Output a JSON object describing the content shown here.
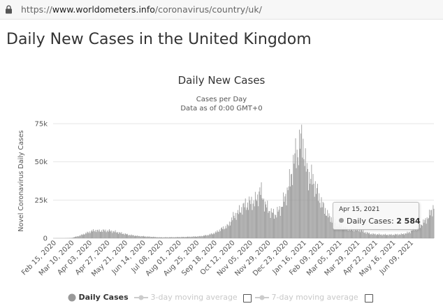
{
  "browser": {
    "url_scheme": "https://",
    "url_host": "www.worldometers.info",
    "url_path": "/coronavirus/country/uk/"
  },
  "page": {
    "title": "Daily New Cases in the United Kingdom"
  },
  "chart_data": {
    "type": "bar",
    "title": "Daily New Cases",
    "subtitle": "Cases per Day",
    "subtitle2": "Data as of 0:00 GMT+0",
    "ylabel": "Novel Coronavirus Daily Cases",
    "ylim": [
      0,
      75000
    ],
    "yticks": [
      0,
      25000,
      50000,
      75000
    ],
    "ytick_labels": [
      "0",
      "25k",
      "50k",
      "75k"
    ],
    "xticks": [
      "Feb 15, 2020",
      "Mar 10, 2020",
      "Apr 03, 2020",
      "Apr 27, 2020",
      "May 21, 2020",
      "Jun 14, 2020",
      "Jul 08, 2020",
      "Aug 01, 2020",
      "Aug 25, 2020",
      "Sep 18, 2020",
      "Oct 12, 2020",
      "Nov 05, 2020",
      "Nov 29, 2020",
      "Dec 23, 2020",
      "Jan 16, 2021",
      "Feb 09, 2021",
      "Mar 05, 2021",
      "Mar 29, 2021",
      "Apr 22, 2021",
      "May 16, 2021",
      "Jun 09, 2021"
    ],
    "x_start": "2020-02-15",
    "x_end": "2021-06-30",
    "series": [
      {
        "name": "Daily Cases",
        "color": "#999999",
        "points": [
          [
            "2020-02-15",
            0
          ],
          [
            "2020-03-01",
            30
          ],
          [
            "2020-03-10",
            200
          ],
          [
            "2020-03-20",
            1500
          ],
          [
            "2020-03-28",
            3000
          ],
          [
            "2020-04-05",
            4500
          ],
          [
            "2020-04-10",
            5200
          ],
          [
            "2020-04-15",
            4800
          ],
          [
            "2020-04-22",
            5000
          ],
          [
            "2020-04-30",
            4800
          ],
          [
            "2020-05-07",
            4200
          ],
          [
            "2020-05-15",
            3300
          ],
          [
            "2020-05-25",
            2200
          ],
          [
            "2020-06-05",
            1500
          ],
          [
            "2020-06-20",
            1000
          ],
          [
            "2020-07-05",
            600
          ],
          [
            "2020-07-25",
            700
          ],
          [
            "2020-08-10",
            900
          ],
          [
            "2020-08-25",
            1200
          ],
          [
            "2020-09-05",
            2000
          ],
          [
            "2020-09-15",
            3500
          ],
          [
            "2020-09-25",
            6500
          ],
          [
            "2020-10-02",
            8000
          ],
          [
            "2020-10-09",
            14000
          ],
          [
            "2020-10-16",
            17000
          ],
          [
            "2020-10-23",
            21000
          ],
          [
            "2020-10-30",
            23000
          ],
          [
            "2020-11-06",
            24000
          ],
          [
            "2020-11-10",
            26000
          ],
          [
            "2020-11-13",
            32000
          ],
          [
            "2020-11-20",
            22000
          ],
          [
            "2020-11-27",
            17000
          ],
          [
            "2020-12-04",
            15500
          ],
          [
            "2020-12-11",
            20000
          ],
          [
            "2020-12-18",
            29000
          ],
          [
            "2020-12-23",
            38000
          ],
          [
            "2020-12-29",
            53000
          ],
          [
            "2021-01-02",
            57000
          ],
          [
            "2021-01-05",
            61000
          ],
          [
            "2021-01-08",
            67000
          ],
          [
            "2021-01-12",
            48000
          ],
          [
            "2021-01-16",
            41000
          ],
          [
            "2021-01-22",
            38000
          ],
          [
            "2021-01-29",
            28000
          ],
          [
            "2021-02-05",
            20000
          ],
          [
            "2021-02-12",
            14000
          ],
          [
            "2021-02-19",
            11000
          ],
          [
            "2021-02-26",
            8500
          ],
          [
            "2021-03-05",
            6500
          ],
          [
            "2021-03-12",
            5700
          ],
          [
            "2021-03-19",
            5500
          ],
          [
            "2021-03-26",
            5000
          ],
          [
            "2021-04-02",
            3600
          ],
          [
            "2021-04-09",
            2800
          ],
          [
            "2021-04-15",
            2584
          ],
          [
            "2021-04-22",
            2400
          ],
          [
            "2021-04-29",
            2300
          ],
          [
            "2021-05-06",
            2300
          ],
          [
            "2021-05-13",
            2500
          ],
          [
            "2021-05-20",
            2700
          ],
          [
            "2021-05-27",
            3500
          ],
          [
            "2021-06-03",
            5500
          ],
          [
            "2021-06-10",
            7500
          ],
          [
            "2021-06-17",
            10500
          ],
          [
            "2021-06-24",
            15000
          ],
          [
            "2021-06-30",
            21000
          ]
        ]
      }
    ],
    "tooltip": {
      "date": "Apr 15, 2021",
      "label": "Daily Cases:",
      "value": "2 584"
    },
    "legend": [
      {
        "name": "Daily Cases",
        "enabled": true,
        "color": "#999999"
      },
      {
        "name": "3-day moving average",
        "enabled": false,
        "color": "#cccccc"
      },
      {
        "name": "7-day moving average",
        "enabled": false,
        "color": "#cccccc"
      }
    ],
    "grid": true,
    "legend_position": "bottom"
  }
}
